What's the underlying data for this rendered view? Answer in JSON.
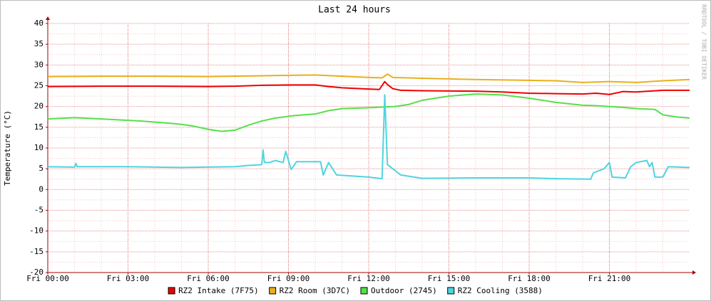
{
  "chart_data": {
    "type": "line",
    "title": "Last 24 hours",
    "y_label": "Temperature (°C)",
    "watermark": "RRDTOOL / TOBI OETIKER",
    "xlim": [
      0,
      24
    ],
    "xticks": [
      {
        "value": 0,
        "label": "Fri 00:00"
      },
      {
        "value": 3,
        "label": "Fri 03:00"
      },
      {
        "value": 6,
        "label": "Fri 06:00"
      },
      {
        "value": 9,
        "label": "Fri 09:00"
      },
      {
        "value": 12,
        "label": "Fri 12:00"
      },
      {
        "value": 15,
        "label": "Fri 15:00"
      },
      {
        "value": 18,
        "label": "Fri 18:00"
      },
      {
        "value": 21,
        "label": "Fri 21:00"
      }
    ],
    "ylim": [
      -20,
      40
    ],
    "yticks": [
      -20,
      -15,
      -10,
      -5,
      0,
      5,
      10,
      15,
      20,
      25,
      30,
      35,
      40
    ],
    "grid": true,
    "legend": "bottom",
    "series": [
      {
        "name": "RZ2 Intake (7F75)",
        "color": "#ee0000",
        "x": [
          0,
          2,
          4,
          6,
          7,
          8,
          9,
          10,
          10.5,
          11,
          12,
          12.4,
          12.6,
          12.7,
          12.9,
          13.2,
          14,
          16,
          17,
          18,
          19,
          20,
          20.5,
          21,
          21.5,
          22,
          23,
          24
        ],
        "values": [
          24.8,
          24.9,
          24.9,
          24.8,
          24.9,
          25.1,
          25.2,
          25.2,
          24.8,
          24.5,
          24.2,
          24.1,
          26.0,
          25.3,
          24.3,
          23.9,
          23.8,
          23.7,
          23.5,
          23.2,
          23.1,
          23.0,
          23.2,
          22.9,
          23.6,
          23.5,
          23.9,
          23.9
        ]
      },
      {
        "name": "RZ2 Room (3D7C)",
        "color": "#e8b01c",
        "x": [
          0,
          2,
          4,
          6,
          8,
          9,
          10,
          11,
          12,
          12.5,
          12.7,
          12.9,
          14,
          16,
          18,
          19,
          20,
          21,
          22,
          23,
          24
        ],
        "values": [
          27.2,
          27.3,
          27.3,
          27.2,
          27.4,
          27.5,
          27.6,
          27.3,
          27.0,
          26.9,
          27.8,
          27.0,
          26.8,
          26.5,
          26.3,
          26.2,
          25.8,
          26.0,
          25.8,
          26.2,
          26.5
        ]
      },
      {
        "name": "Outdoor (2745)",
        "color": "#55e04a",
        "x": [
          0,
          1,
          2,
          3.5,
          4.5,
          5,
          5.5,
          6,
          6.5,
          7,
          7.5,
          8,
          8.5,
          9.2,
          10,
          10.5,
          11,
          12,
          13,
          13.5,
          14,
          15,
          16,
          17,
          18,
          19,
          20,
          20.5,
          21.5,
          22,
          22.7,
          23,
          23.5,
          24
        ],
        "values": [
          17.0,
          17.3,
          17.0,
          16.5,
          16.0,
          15.7,
          15.2,
          14.5,
          14.0,
          14.3,
          15.5,
          16.5,
          17.2,
          17.8,
          18.2,
          19.0,
          19.5,
          19.7,
          20.0,
          20.5,
          21.5,
          22.5,
          23.0,
          22.8,
          22.0,
          21.0,
          20.3,
          20.2,
          19.8,
          19.5,
          19.3,
          18.0,
          17.5,
          17.2
        ]
      },
      {
        "name": "RZ2 Cooling (3588)",
        "color": "#4fd4e0",
        "x": [
          0,
          1,
          1.05,
          1.1,
          3,
          5,
          7,
          7.5,
          8,
          8.05,
          8.1,
          8.3,
          8.5,
          8.8,
          8.9,
          9.1,
          9.3,
          10.2,
          10.3,
          10.5,
          10.8,
          11.5,
          12,
          12.5,
          12.6,
          12.7,
          13.2,
          14,
          16,
          18,
          19,
          20.3,
          20.4,
          20.8,
          21,
          21.1,
          21.6,
          21.8,
          22,
          22.4,
          22.5,
          22.6,
          22.7,
          23,
          23.2,
          24
        ],
        "values": [
          5.5,
          5.4,
          6.3,
          5.5,
          5.5,
          5.3,
          5.5,
          5.8,
          6.0,
          9.5,
          6.5,
          6.5,
          7.0,
          6.5,
          9.2,
          4.8,
          6.7,
          6.7,
          3.5,
          6.5,
          3.5,
          3.2,
          3.0,
          2.6,
          22.8,
          6.0,
          3.5,
          2.7,
          2.8,
          2.8,
          2.6,
          2.5,
          4.0,
          5.0,
          6.5,
          3.0,
          2.8,
          5.5,
          6.5,
          7.0,
          5.5,
          6.5,
          3.0,
          3.0,
          5.5,
          5.3
        ]
      }
    ]
  }
}
